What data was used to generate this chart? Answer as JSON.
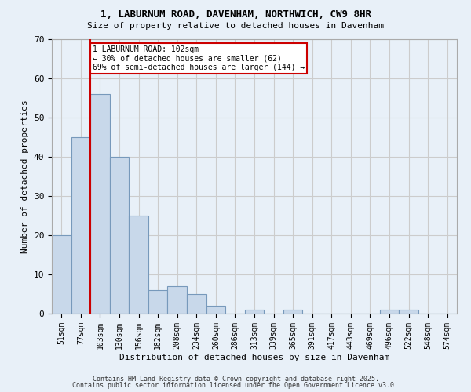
{
  "title_line1": "1, LABURNUM ROAD, DAVENHAM, NORTHWICH, CW9 8HR",
  "title_line2": "Size of property relative to detached houses in Davenham",
  "xlabel": "Distribution of detached houses by size in Davenham",
  "ylabel": "Number of detached properties",
  "categories": [
    "51sqm",
    "77sqm",
    "103sqm",
    "130sqm",
    "156sqm",
    "182sqm",
    "208sqm",
    "234sqm",
    "260sqm",
    "286sqm",
    "313sqm",
    "339sqm",
    "365sqm",
    "391sqm",
    "417sqm",
    "443sqm",
    "469sqm",
    "496sqm",
    "522sqm",
    "548sqm",
    "574sqm"
  ],
  "values": [
    20,
    45,
    56,
    40,
    25,
    6,
    7,
    5,
    2,
    0,
    1,
    0,
    1,
    0,
    0,
    0,
    0,
    1,
    1,
    0,
    0
  ],
  "bar_color": "#c8d8ea",
  "bar_edge_color": "#7799bb",
  "vline_x_index": 2,
  "vline_color": "#cc0000",
  "annotation_text": "1 LABURNUM ROAD: 102sqm\n← 30% of detached houses are smaller (62)\n69% of semi-detached houses are larger (144) →",
  "annotation_box_facecolor": "#ffffff",
  "annotation_box_edgecolor": "#cc0000",
  "ylim": [
    0,
    70
  ],
  "yticks": [
    0,
    10,
    20,
    30,
    40,
    50,
    60,
    70
  ],
  "grid_color": "#cccccc",
  "background_color": "#e8f0f8",
  "footer_line1": "Contains HM Land Registry data © Crown copyright and database right 2025.",
  "footer_line2": "Contains public sector information licensed under the Open Government Licence v3.0."
}
